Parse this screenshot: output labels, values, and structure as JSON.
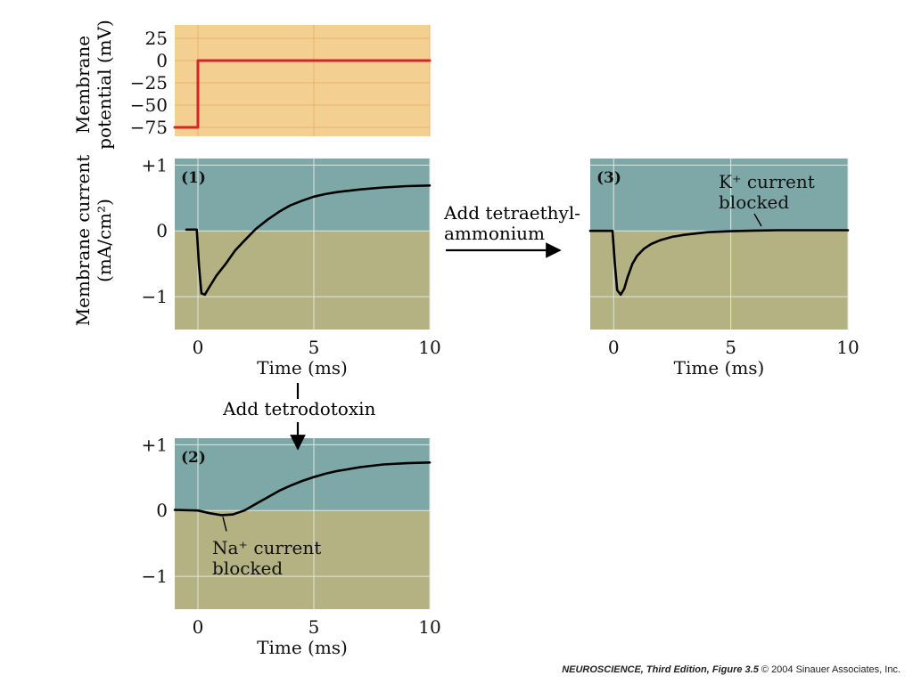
{
  "figure": {
    "steps": {
      "tea_line1": "Add tetraethyl-",
      "tea_line2": "ammonium",
      "ttx": "Add tetrodotoxin"
    },
    "credit": {
      "edition": "NEUROSCIENCE, Third Edition,",
      "figure": "Figure 3.5",
      "copyright": "© 2004 Sinauer Associates, Inc."
    }
  },
  "chart_data": [
    {
      "id": "voltage",
      "type": "line",
      "ylabel": [
        "Membrane",
        "potential (mV)"
      ],
      "xlim": [
        -1,
        10
      ],
      "ylim": [
        -85,
        40
      ],
      "yticks": [
        25,
        0,
        -25,
        -50,
        -75
      ],
      "ytick_labels": [
        "25",
        "0",
        "−25",
        "−50",
        "−75"
      ],
      "grid": true,
      "colors": {
        "background": "#f4cf92",
        "grid": "#e8b46a",
        "line": "#d8232a"
      },
      "series": [
        {
          "x": [
            -1,
            0,
            0,
            10
          ],
          "y": [
            -75,
            -75,
            0,
            0
          ]
        }
      ]
    },
    {
      "id": "control",
      "type": "line",
      "panel_label": "(1)",
      "ylabel": [
        "Membrane current",
        "(mA/cm²)"
      ],
      "xlabel": "Time (ms)",
      "xlim": [
        -1,
        10
      ],
      "ylim": [
        -1.5,
        1.1
      ],
      "xticks": [
        0,
        5,
        10
      ],
      "yticks": [
        1,
        0,
        -1
      ],
      "ytick_labels": [
        "+1",
        "0",
        "−1"
      ],
      "grid": true,
      "colors": {
        "outward": "#7ea8a8",
        "inward": "#b4b282",
        "grid": "#dfe6df",
        "line": "#000000"
      },
      "series": [
        {
          "x": [
            -0.5,
            -0.05,
            0.05,
            0.15,
            0.3,
            0.5,
            0.8,
            1.2,
            1.6,
            2.0,
            2.5,
            3.0,
            3.5,
            4.0,
            4.5,
            5.0,
            5.5,
            6.0,
            7.0,
            8.0,
            9.0,
            10.0
          ],
          "y": [
            0.02,
            0.02,
            -0.55,
            -0.95,
            -0.97,
            -0.85,
            -0.68,
            -0.5,
            -0.3,
            -0.15,
            0.03,
            0.17,
            0.29,
            0.39,
            0.46,
            0.52,
            0.56,
            0.59,
            0.63,
            0.66,
            0.68,
            0.69
          ]
        }
      ]
    },
    {
      "id": "ttx",
      "type": "line",
      "panel_label": "(2)",
      "xlabel": "Time (ms)",
      "xlim": [
        -1,
        10
      ],
      "ylim": [
        -1.5,
        1.1
      ],
      "xticks": [
        0,
        5,
        10
      ],
      "yticks": [
        1,
        0,
        -1
      ],
      "ytick_labels": [
        "+1",
        "0",
        "−1"
      ],
      "grid": true,
      "annotation": {
        "line1": "Na⁺ current",
        "line2": "blocked"
      },
      "colors": {
        "outward": "#7ea8a8",
        "inward": "#b4b282",
        "grid": "#dfe6df",
        "line": "#000000"
      },
      "series": [
        {
          "x": [
            -1,
            0,
            0.5,
            1.0,
            1.5,
            2.0,
            2.5,
            3.0,
            3.5,
            4.0,
            4.5,
            5.0,
            5.5,
            6.0,
            7.0,
            8.0,
            9.0,
            10.0
          ],
          "y": [
            0.01,
            0.0,
            -0.04,
            -0.07,
            -0.06,
            0.0,
            0.1,
            0.2,
            0.3,
            0.38,
            0.45,
            0.51,
            0.56,
            0.6,
            0.66,
            0.7,
            0.72,
            0.73
          ]
        }
      ]
    },
    {
      "id": "tea",
      "type": "line",
      "panel_label": "(3)",
      "xlabel": "Time (ms)",
      "xlim": [
        -1,
        10
      ],
      "ylim": [
        -1.5,
        1.1
      ],
      "xticks": [
        0,
        5,
        10
      ],
      "grid": true,
      "annotation": {
        "line1": "K⁺ current",
        "line2": "blocked"
      },
      "colors": {
        "outward": "#7ea8a8",
        "inward": "#b4b282",
        "grid": "#dfe6df",
        "line": "#000000"
      },
      "series": [
        {
          "x": [
            -1,
            -0.05,
            0.05,
            0.15,
            0.3,
            0.45,
            0.6,
            0.8,
            1.0,
            1.3,
            1.6,
            2.0,
            2.5,
            3.0,
            3.5,
            4.0,
            5.0,
            6.0,
            7.0,
            8.0,
            9.0,
            10.0
          ],
          "y": [
            0.0,
            0.0,
            -0.5,
            -0.9,
            -0.97,
            -0.88,
            -0.7,
            -0.5,
            -0.38,
            -0.27,
            -0.2,
            -0.14,
            -0.09,
            -0.06,
            -0.04,
            -0.02,
            -0.005,
            0.005,
            0.01,
            0.01,
            0.01,
            0.01
          ]
        }
      ]
    }
  ]
}
